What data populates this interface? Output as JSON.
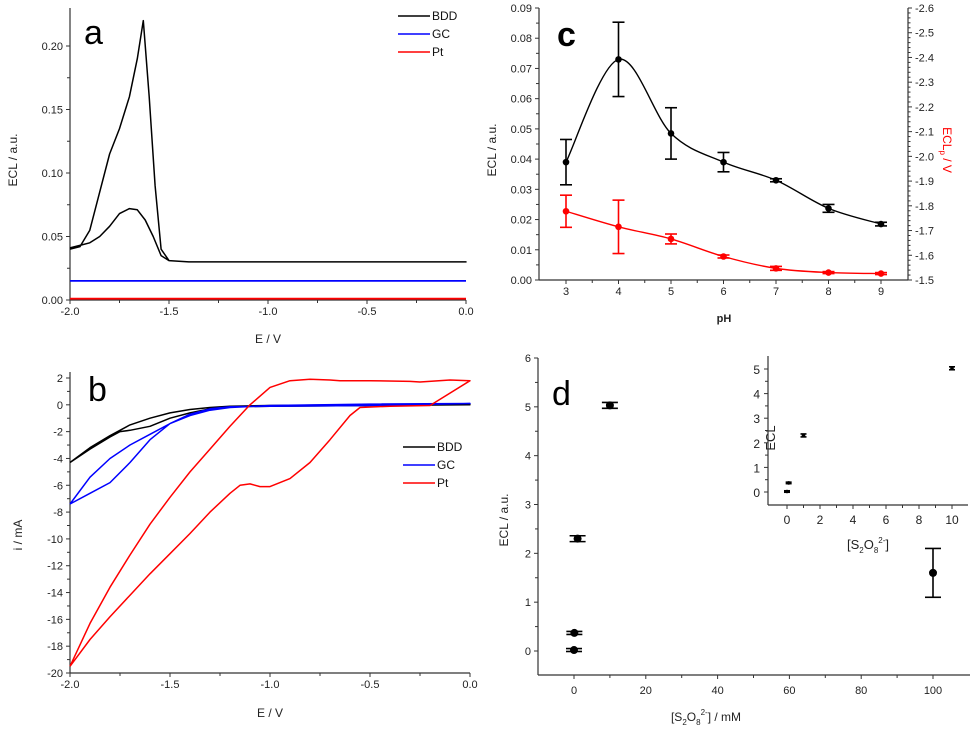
{
  "chart_data": [
    {
      "panel": "a",
      "type": "line",
      "title": "",
      "xlabel": "E / V",
      "ylabel": "ECL / a.u.",
      "xlim": [
        -2.0,
        0.0
      ],
      "ylim": [
        0.0,
        0.23
      ],
      "xticks": [
        "-2.0",
        "-1.5",
        "-1.0",
        "-0.5",
        "0.0"
      ],
      "xtick_values": [
        -2.0,
        -1.5,
        -1.0,
        -0.5,
        0.0
      ],
      "yticks": [
        "0.00",
        "0.05",
        "0.10",
        "0.15",
        "0.20"
      ],
      "ytick_values": [
        0.0,
        0.05,
        0.1,
        0.15,
        0.2
      ],
      "legend": {
        "position": "top-right",
        "entries": [
          "BDD",
          "GC",
          "Pt"
        ]
      },
      "series": [
        {
          "name": "BDD",
          "color": "#000000",
          "x": [
            -2.0,
            -1.95,
            -1.9,
            -1.85,
            -1.8,
            -1.75,
            -1.7,
            -1.66,
            -1.63,
            -1.6,
            -1.57,
            -1.54,
            -1.5,
            -1.4,
            -1.0,
            -0.5,
            0.0,
            -0.5,
            -1.0,
            -1.4,
            -1.5,
            -1.54,
            -1.58,
            -1.62,
            -1.66,
            -1.7,
            -1.75,
            -1.8,
            -1.85,
            -1.9,
            -1.95,
            -2.0
          ],
          "y": [
            0.04,
            0.042,
            0.055,
            0.085,
            0.115,
            0.135,
            0.16,
            0.19,
            0.22,
            0.16,
            0.09,
            0.04,
            0.031,
            0.03,
            0.03,
            0.03,
            0.03,
            0.03,
            0.03,
            0.03,
            0.031,
            0.035,
            0.05,
            0.063,
            0.071,
            0.072,
            0.068,
            0.058,
            0.05,
            0.045,
            0.043,
            0.041
          ]
        },
        {
          "name": "GC",
          "color": "#0000ff",
          "x": [
            -2.0,
            0.0
          ],
          "y": [
            0.015,
            0.015
          ]
        },
        {
          "name": "Pt",
          "color": "#ff0000",
          "x": [
            -2.0,
            0.0
          ],
          "y": [
            0.001,
            0.001
          ]
        }
      ]
    },
    {
      "panel": "b",
      "type": "line",
      "title": "",
      "xlabel": "E / V",
      "ylabel": "i / mA",
      "xlim": [
        -2.0,
        0.0
      ],
      "ylim": [
        -20,
        2
      ],
      "xticks": [
        "-2.0",
        "-1.5",
        "-1.0",
        "-0.5",
        "0.0"
      ],
      "xtick_values": [
        -2.0,
        -1.5,
        -1.0,
        -0.5,
        0.0
      ],
      "yticks": [
        "2",
        "0",
        "-2",
        "-4",
        "-6",
        "-8",
        "-10",
        "-12",
        "-14",
        "-16",
        "-18",
        "-20"
      ],
      "ytick_values": [
        2,
        0,
        -2,
        -4,
        -6,
        -8,
        -10,
        -12,
        -14,
        -16,
        -18,
        -20
      ],
      "legend": {
        "position": "right",
        "entries": [
          "BDD",
          "GC",
          "Pt"
        ]
      },
      "series": [
        {
          "name": "BDD",
          "color": "#000000",
          "x": [
            -2.0,
            -1.9,
            -1.8,
            -1.7,
            -1.6,
            -1.5,
            -1.4,
            -1.3,
            -1.2,
            -1.0,
            -0.5,
            0.0,
            -0.5,
            -1.0,
            -1.2,
            -1.3,
            -1.4,
            -1.5,
            -1.6,
            -1.7,
            -1.75,
            -1.8,
            -1.9,
            -2.0
          ],
          "y": [
            -4.3,
            -3.2,
            -2.3,
            -1.5,
            -1.0,
            -0.6,
            -0.35,
            -0.2,
            -0.1,
            -0.05,
            0.0,
            0.0,
            -0.05,
            -0.1,
            -0.15,
            -0.3,
            -0.6,
            -1.0,
            -1.6,
            -1.9,
            -2.0,
            -2.4,
            -3.3,
            -4.3
          ]
        },
        {
          "name": "GC",
          "color": "#0000ff",
          "x": [
            -2.0,
            -1.9,
            -1.8,
            -1.7,
            -1.6,
            -1.5,
            -1.4,
            -1.3,
            -1.2,
            -1.0,
            -0.5,
            0.0,
            -0.5,
            -1.0,
            -1.2,
            -1.3,
            -1.4,
            -1.5,
            -1.6,
            -1.7,
            -1.8,
            -1.9,
            -2.0
          ],
          "y": [
            -7.4,
            -5.4,
            -4.0,
            -3.0,
            -2.2,
            -1.4,
            -0.7,
            -0.3,
            -0.15,
            -0.1,
            -0.05,
            0.1,
            0.05,
            -0.05,
            -0.2,
            -0.4,
            -0.8,
            -1.4,
            -2.6,
            -4.3,
            -5.8,
            -6.6,
            -7.4
          ]
        },
        {
          "name": "Pt",
          "color": "#ff0000",
          "x": [
            -2.0,
            -1.9,
            -1.8,
            -1.7,
            -1.6,
            -1.5,
            -1.4,
            -1.3,
            -1.2,
            -1.1,
            -1.0,
            -0.9,
            -0.8,
            -0.7,
            -0.65,
            -0.5,
            -0.3,
            -0.25,
            -0.1,
            0.0,
            -0.2,
            -0.4,
            -0.55,
            -0.6,
            -0.7,
            -0.8,
            -0.9,
            -1.0,
            -1.05,
            -1.1,
            -1.15,
            -1.2,
            -1.3,
            -1.4,
            -1.5,
            -1.6,
            -1.7,
            -1.8,
            -1.9,
            -2.0
          ],
          "y": [
            -19.5,
            -16.3,
            -13.6,
            -11.2,
            -8.9,
            -6.9,
            -5.0,
            -3.3,
            -1.6,
            0.0,
            1.3,
            1.8,
            1.9,
            1.85,
            1.8,
            1.8,
            1.75,
            1.7,
            1.85,
            1.8,
            -0.05,
            -0.1,
            -0.2,
            -0.8,
            -2.6,
            -4.3,
            -5.5,
            -6.1,
            -6.1,
            -5.9,
            -6.0,
            -6.6,
            -8.0,
            -9.6,
            -11.1,
            -12.6,
            -14.2,
            -15.8,
            -17.5,
            -19.5
          ]
        }
      ]
    },
    {
      "panel": "c",
      "type": "line",
      "title": "",
      "xlabel": "pH",
      "ylabel": "ECL / a.u.",
      "ylabel_right": "ECLp / V",
      "ylabel_right_color": "#ff0000",
      "xlim": [
        2.5,
        9.5
      ],
      "ylim": [
        0.0,
        0.09
      ],
      "ylim_right": [
        -1.5,
        -2.6
      ],
      "xticks": [
        "3",
        "4",
        "5",
        "6",
        "7",
        "8",
        "9"
      ],
      "xtick_values": [
        3,
        4,
        5,
        6,
        7,
        8,
        9
      ],
      "yticks": [
        "0.00",
        "0.01",
        "0.02",
        "0.03",
        "0.04",
        "0.05",
        "0.06",
        "0.07",
        "0.08",
        "0.09"
      ],
      "ytick_values": [
        0.0,
        0.01,
        0.02,
        0.03,
        0.04,
        0.05,
        0.06,
        0.07,
        0.08,
        0.09
      ],
      "yticks_right": [
        "-1.5",
        "-1.6",
        "-1.7",
        "-1.8",
        "-1.9",
        "-2.0",
        "-2.1",
        "-2.2",
        "-2.3",
        "-2.4",
        "-2.5",
        "-2.6"
      ],
      "ytick_values_right": [
        -1.5,
        -1.6,
        -1.7,
        -1.8,
        -1.9,
        -2.0,
        -2.1,
        -2.2,
        -2.3,
        -2.4,
        -2.5,
        -2.6
      ],
      "series": [
        {
          "name": "ECL",
          "axis": "left",
          "color": "#000000",
          "x": [
            3,
            4,
            5,
            6,
            7,
            8,
            9
          ],
          "y": [
            0.039,
            0.073,
            0.0485,
            0.039,
            0.033,
            0.0237,
            0.0185
          ],
          "err": [
            0.0075,
            0.0123,
            0.0085,
            0.0032,
            0.0005,
            0.0013,
            0.0006
          ]
        },
        {
          "name": "ECLp",
          "axis": "right",
          "color": "#ff0000",
          "x": [
            3,
            4,
            5,
            6,
            7,
            8,
            9
          ],
          "y": [
            -1.778,
            -1.715,
            -1.666,
            -1.595,
            -1.547,
            -1.53,
            -1.526
          ],
          "err": [
            0.065,
            0.108,
            0.02,
            0.006,
            0.008,
            0.004,
            0.004
          ]
        }
      ]
    },
    {
      "panel": "d",
      "type": "scatter",
      "title": "",
      "xlabel": "[S2O8 2-] / mM",
      "ylabel": "ECL / a.u.",
      "xlim": [
        -10,
        110
      ],
      "ylim": [
        -0.5,
        6
      ],
      "xticks": [
        "0",
        "20",
        "40",
        "60",
        "80",
        "100"
      ],
      "xtick_values": [
        0,
        20,
        40,
        60,
        80,
        100
      ],
      "yticks": [
        "0",
        "1",
        "2",
        "3",
        "4",
        "5",
        "6"
      ],
      "ytick_values": [
        0,
        1,
        2,
        3,
        4,
        5,
        6
      ],
      "series": [
        {
          "name": "ECL",
          "color": "#000000",
          "x": [
            0,
            0.1,
            1,
            10,
            100
          ],
          "y": [
            0.02,
            0.37,
            2.3,
            5.03,
            1.6
          ],
          "err": [
            0.03,
            0.03,
            0.06,
            0.06,
            0.5
          ]
        }
      ],
      "inset": {
        "type": "scatter",
        "xlabel": "[S2O8 2-]",
        "ylabel": "ECL",
        "xlim": [
          -1,
          11
        ],
        "ylim": [
          -0.5,
          5.5
        ],
        "xticks": [
          "0",
          "2",
          "4",
          "6",
          "8",
          "10"
        ],
        "xtick_values": [
          0,
          2,
          4,
          6,
          8,
          10
        ],
        "yticks": [
          "0",
          "1",
          "2",
          "3",
          "4",
          "5"
        ],
        "ytick_values": [
          0,
          1,
          2,
          3,
          4,
          5
        ],
        "series": [
          {
            "name": "ECL",
            "color": "#000000",
            "x": [
              0,
              0.1,
              1,
              10
            ],
            "y": [
              0.02,
              0.37,
              2.3,
              5.03
            ],
            "err": [
              0.03,
              0.03,
              0.06,
              0.06
            ]
          }
        ]
      }
    }
  ],
  "panel_letters": {
    "a": "a",
    "b": "b",
    "c": "c",
    "d": "d"
  },
  "labels": {
    "a_x": "E / V",
    "a_y": "ECL / a.u.",
    "b_x": "E / V",
    "b_y": "i / mA",
    "c_x": "pH",
    "c_y": "ECL / a.u.",
    "c_y_right_main": "ECL",
    "c_y_right_sub": "p",
    "c_y_right_tail": " / V",
    "d_y": "ECL / a.u.",
    "d_x_pre": "[S",
    "d_x_sub1": "2",
    "d_x_mid": "O",
    "d_x_sub2": "8",
    "d_x_sup": "2-",
    "d_x_post": "] / mM",
    "inset_y": "ECL",
    "inset_x_pre": "[S",
    "inset_x_sub1": "2",
    "inset_x_mid": "O",
    "inset_x_sub2": "8",
    "inset_x_sup": "2-",
    "inset_x_post": "]"
  }
}
